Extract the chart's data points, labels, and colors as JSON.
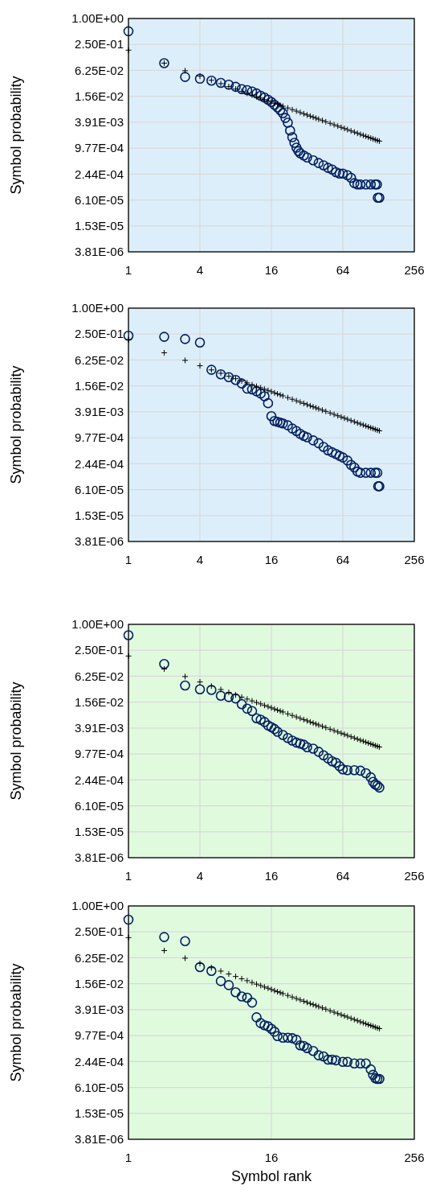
{
  "chart_data": [
    {
      "type": "scatter",
      "ylabel": "Symbol probability",
      "log": "xy",
      "grid": true,
      "xlim": [
        1,
        256
      ],
      "xticks": [
        1,
        4,
        16,
        64,
        256
      ],
      "ylim": [
        3.814697265625e-06,
        1
      ],
      "yticks": [
        {
          "value": 1,
          "label": "1.00E+00"
        },
        {
          "value": 0.25,
          "label": "2.50E-01"
        },
        {
          "value": 0.0625,
          "label": "6.25E-02"
        },
        {
          "value": 0.015625,
          "label": "1.56E-02"
        },
        {
          "value": 0.00390625,
          "label": "3.91E-03"
        },
        {
          "value": 0.0009765625,
          "label": "9.77E-04"
        },
        {
          "value": 0.000244140625,
          "label": "2.44E-04"
        },
        {
          "value": 6.103515625e-05,
          "label": "6.10E-05"
        },
        {
          "value": 1.52587890625e-05,
          "label": "1.53E-05"
        },
        {
          "value": 3.814697265625e-06,
          "label": "3.81E-06"
        }
      ],
      "series": [
        {
          "color": "#002060",
          "marker": "circle",
          "x": [
            1,
            2,
            3,
            4,
            5,
            6,
            7,
            8,
            9,
            10,
            11,
            12,
            13,
            14,
            15,
            16,
            17,
            18,
            19,
            20,
            21,
            22,
            23,
            24,
            25,
            26,
            27,
            28,
            30,
            32,
            36,
            40,
            44,
            48,
            52,
            56,
            60,
            64,
            70,
            75,
            80,
            85,
            90,
            100,
            110,
            120,
            124,
            126,
            130
          ],
          "values": [
            0.506,
            0.092,
            0.044,
            0.04,
            0.036,
            0.032,
            0.029,
            0.026,
            0.023,
            0.0218,
            0.0202,
            0.0182,
            0.0161,
            0.0146,
            0.013,
            0.0115,
            0.0099,
            0.0086,
            0.0074,
            0.0063,
            0.0049,
            0.0038,
            0.0025,
            0.00175,
            0.0013,
            0.001,
            0.00083,
            0.00074,
            0.00066,
            0.00059,
            0.00051,
            0.00044,
            0.00039,
            0.00034,
            0.00031,
            0.00027,
            0.00025,
            0.00025,
            0.00023,
            0.0002,
            0.00015,
            0.00014,
            0.00014,
            0.00014,
            0.00014,
            0.00014,
            0.00014,
            6.9e-05,
            6.9e-05
          ]
        },
        {
          "color": "#000000",
          "marker": "cross",
          "x": [
            1,
            2,
            3,
            4,
            5,
            6,
            7,
            8,
            9,
            10,
            11,
            12,
            13,
            14,
            15,
            16,
            17,
            18,
            19,
            20,
            22,
            24,
            26,
            28,
            30,
            32,
            34,
            36,
            38,
            40,
            43,
            46,
            50,
            54,
            58,
            62,
            66,
            70,
            75,
            80,
            85,
            90,
            95,
            100,
            105,
            110,
            115,
            120,
            125,
            130
          ],
          "values": [
            0.184,
            0.092,
            0.0613,
            0.046,
            0.0368,
            0.0307,
            0.0263,
            0.023,
            0.0204,
            0.0184,
            0.0167,
            0.0153,
            0.0142,
            0.0131,
            0.0123,
            0.0115,
            0.0108,
            0.0102,
            0.00968,
            0.0092,
            0.00836,
            0.00767,
            0.00708,
            0.00657,
            0.00613,
            0.00575,
            0.00541,
            0.00511,
            0.00484,
            0.0046,
            0.00428,
            0.004,
            0.00368,
            0.00341,
            0.00317,
            0.00297,
            0.00279,
            0.00263,
            0.00245,
            0.0023,
            0.00216,
            0.00204,
            0.00194,
            0.00184,
            0.00175,
            0.00167,
            0.0016,
            0.00153,
            0.00147,
            0.00142
          ]
        }
      ]
    },
    {
      "type": "scatter",
      "ylabel": "Symbol probability",
      "log": "xy",
      "grid": true,
      "xlim": [
        1,
        256
      ],
      "xticks": [
        1,
        4,
        16,
        64,
        256
      ],
      "ylim": [
        3.814697265625e-06,
        1
      ],
      "yticks": [
        {
          "value": 1,
          "label": "1.00E+00"
        },
        {
          "value": 0.25,
          "label": "2.50E-01"
        },
        {
          "value": 0.0625,
          "label": "6.25E-02"
        },
        {
          "value": 0.015625,
          "label": "1.56E-02"
        },
        {
          "value": 0.00390625,
          "label": "3.91E-03"
        },
        {
          "value": 0.0009765625,
          "label": "9.77E-04"
        },
        {
          "value": 0.000244140625,
          "label": "2.44E-04"
        },
        {
          "value": 6.103515625e-05,
          "label": "6.10E-05"
        },
        {
          "value": 1.52587890625e-05,
          "label": "1.53E-05"
        },
        {
          "value": 3.814697265625e-06,
          "label": "3.81E-06"
        }
      ],
      "series": [
        {
          "color": "#002060",
          "marker": "circle",
          "x": [
            1,
            2,
            3,
            4,
            5,
            6,
            7,
            8,
            9,
            10,
            11,
            12,
            13,
            14,
            15,
            16,
            17,
            18,
            19,
            20,
            22,
            24,
            26,
            28,
            30,
            32,
            36,
            40,
            44,
            48,
            52,
            56,
            60,
            64,
            70,
            75,
            80,
            85,
            90,
            100,
            110,
            120,
            125,
            127,
            130
          ],
          "values": [
            0.229,
            0.216,
            0.192,
            0.159,
            0.037,
            0.029,
            0.025,
            0.0215,
            0.0178,
            0.0135,
            0.013,
            0.0117,
            0.0104,
            0.009,
            0.0062,
            0.0031,
            0.0024,
            0.0023,
            0.0022,
            0.0021,
            0.0019,
            0.0016,
            0.0014,
            0.0012,
            0.00108,
            0.001,
            0.00085,
            0.00073,
            0.0006,
            0.0005,
            0.00045,
            0.00041,
            0.00037,
            0.00034,
            0.00029,
            0.00023,
            0.0002,
            0.00016,
            0.00015,
            0.00015,
            0.00015,
            0.00015,
            0.00015,
            7.3e-05,
            7.3e-05
          ]
        },
        {
          "color": "#000000",
          "marker": "cross",
          "x": [
            1,
            2,
            3,
            4,
            5,
            6,
            7,
            8,
            9,
            10,
            11,
            12,
            13,
            14,
            15,
            16,
            17,
            18,
            19,
            20,
            22,
            24,
            26,
            28,
            30,
            32,
            34,
            36,
            38,
            40,
            43,
            46,
            50,
            54,
            58,
            62,
            66,
            70,
            75,
            80,
            85,
            90,
            95,
            100,
            105,
            110,
            115,
            120,
            125,
            130
          ],
          "values": [
            0.184,
            0.092,
            0.0613,
            0.046,
            0.0368,
            0.0307,
            0.0263,
            0.023,
            0.0204,
            0.0184,
            0.0167,
            0.0153,
            0.0142,
            0.0131,
            0.0123,
            0.0115,
            0.0108,
            0.0102,
            0.00968,
            0.0092,
            0.00836,
            0.00767,
            0.00708,
            0.00657,
            0.00613,
            0.00575,
            0.00541,
            0.00511,
            0.00484,
            0.0046,
            0.00428,
            0.004,
            0.00368,
            0.00341,
            0.00317,
            0.00297,
            0.00279,
            0.00263,
            0.00245,
            0.0023,
            0.00216,
            0.00204,
            0.00194,
            0.00184,
            0.00175,
            0.00167,
            0.0016,
            0.00153,
            0.00147,
            0.00142
          ]
        }
      ]
    },
    {
      "type": "scatter",
      "ylabel": "Symbol probability",
      "log": "xy",
      "grid": true,
      "xlim": [
        1,
        256
      ],
      "xticks": [
        1,
        4,
        16,
        64,
        256
      ],
      "ylim": [
        3.814697265625e-06,
        1
      ],
      "yticks": [
        {
          "value": 1,
          "label": "1.00E+00"
        },
        {
          "value": 0.25,
          "label": "2.50E-01"
        },
        {
          "value": 0.0625,
          "label": "6.25E-02"
        },
        {
          "value": 0.015625,
          "label": "1.56E-02"
        },
        {
          "value": 0.00390625,
          "label": "3.91E-03"
        },
        {
          "value": 0.0009765625,
          "label": "9.77E-04"
        },
        {
          "value": 0.000244140625,
          "label": "2.44E-04"
        },
        {
          "value": 6.103515625e-05,
          "label": "6.10E-05"
        },
        {
          "value": 1.52587890625e-05,
          "label": "1.53E-05"
        },
        {
          "value": 3.814697265625e-06,
          "label": "3.81E-06"
        }
      ],
      "series": [
        {
          "color": "#002060",
          "marker": "circle",
          "x": [
            1,
            2,
            3,
            4,
            5,
            6,
            7,
            8,
            9,
            10,
            11,
            12,
            13,
            14,
            15,
            16,
            17,
            18,
            20,
            22,
            24,
            26,
            28,
            30,
            32,
            36,
            40,
            44,
            48,
            52,
            56,
            60,
            64,
            70,
            80,
            90,
            100,
            110,
            115,
            120,
            125,
            130
          ],
          "values": [
            0.56,
            0.12,
            0.038,
            0.031,
            0.03,
            0.022,
            0.0205,
            0.019,
            0.014,
            0.011,
            0.0097,
            0.0066,
            0.0061,
            0.0054,
            0.0045,
            0.0041,
            0.0037,
            0.0032,
            0.0027,
            0.0023,
            0.002,
            0.0018,
            0.0017,
            0.0016,
            0.0014,
            0.0013,
            0.0011,
            0.00091,
            0.00077,
            0.00066,
            0.00061,
            0.00051,
            0.00043,
            0.00041,
            0.00041,
            0.0004,
            0.00035,
            0.00028,
            0.00022,
            0.00019,
            0.00018,
            0.000162
          ]
        },
        {
          "color": "#000000",
          "marker": "cross",
          "x": [
            1,
            2,
            3,
            4,
            5,
            6,
            7,
            8,
            9,
            10,
            11,
            12,
            13,
            14,
            15,
            16,
            17,
            18,
            19,
            20,
            22,
            24,
            26,
            28,
            30,
            32,
            34,
            36,
            38,
            40,
            43,
            46,
            50,
            54,
            58,
            62,
            66,
            70,
            75,
            80,
            85,
            90,
            95,
            100,
            105,
            110,
            115,
            120,
            125,
            130
          ],
          "values": [
            0.184,
            0.092,
            0.0613,
            0.046,
            0.0368,
            0.0307,
            0.0263,
            0.023,
            0.0204,
            0.0184,
            0.0167,
            0.0153,
            0.0142,
            0.0131,
            0.0123,
            0.0115,
            0.0108,
            0.0102,
            0.00968,
            0.0092,
            0.00836,
            0.00767,
            0.00708,
            0.00657,
            0.00613,
            0.00575,
            0.00541,
            0.00511,
            0.00484,
            0.0046,
            0.00428,
            0.004,
            0.00368,
            0.00341,
            0.00317,
            0.00297,
            0.00279,
            0.00263,
            0.00245,
            0.0023,
            0.00216,
            0.00204,
            0.00194,
            0.00184,
            0.00175,
            0.00167,
            0.0016,
            0.00153,
            0.00147,
            0.00142
          ]
        }
      ]
    },
    {
      "type": "scatter",
      "xlabel": "Symbol rank",
      "ylabel": "Symbol probability",
      "log": "xy",
      "grid": true,
      "xlim": [
        1,
        256
      ],
      "xticks": [
        1,
        16,
        256
      ],
      "ylim": [
        3.814697265625e-06,
        1
      ],
      "yticks": [
        {
          "value": 1,
          "label": "1.00E+00"
        },
        {
          "value": 0.25,
          "label": "2.50E-01"
        },
        {
          "value": 0.0625,
          "label": "6.25E-02"
        },
        {
          "value": 0.015625,
          "label": "1.56E-02"
        },
        {
          "value": 0.00390625,
          "label": "3.91E-03"
        },
        {
          "value": 0.0009765625,
          "label": "9.77E-04"
        },
        {
          "value": 0.000244140625,
          "label": "2.44E-04"
        },
        {
          "value": 6.103515625e-05,
          "label": "6.10E-05"
        },
        {
          "value": 1.52587890625e-05,
          "label": "1.53E-05"
        },
        {
          "value": 3.814697265625e-06,
          "label": "3.81E-06"
        }
      ],
      "series": [
        {
          "color": "#002060",
          "marker": "circle",
          "x": [
            1,
            2,
            3,
            4,
            5,
            6,
            7,
            8,
            9,
            10,
            11,
            12,
            13,
            14,
            15,
            16,
            17,
            18,
            20,
            22,
            24,
            26,
            28,
            30,
            32,
            36,
            40,
            44,
            48,
            52,
            56,
            64,
            70,
            80,
            90,
            100,
            110,
            115,
            120,
            125,
            130
          ],
          "values": [
            0.48,
            0.19,
            0.152,
            0.038,
            0.031,
            0.018,
            0.0145,
            0.0099,
            0.0079,
            0.0074,
            0.0057,
            0.0026,
            0.0019,
            0.0017,
            0.0016,
            0.0014,
            0.0012,
            0.00095,
            0.00087,
            0.00087,
            0.00085,
            0.00078,
            0.00058,
            0.00056,
            0.0005,
            0.00043,
            0.00034,
            0.00032,
            0.00027,
            0.00027,
            0.00026,
            0.00024,
            0.00024,
            0.00022,
            0.00022,
            0.00022,
            0.00016,
            0.00012,
            0.0001,
            9.6e-05,
            9.6e-05
          ]
        },
        {
          "color": "#000000",
          "marker": "cross",
          "x": [
            1,
            2,
            3,
            4,
            5,
            6,
            7,
            8,
            9,
            10,
            11,
            12,
            13,
            14,
            15,
            16,
            17,
            18,
            19,
            20,
            22,
            24,
            26,
            28,
            30,
            32,
            34,
            36,
            38,
            40,
            43,
            46,
            50,
            54,
            58,
            62,
            66,
            70,
            75,
            80,
            85,
            90,
            95,
            100,
            105,
            110,
            115,
            120,
            125,
            130
          ],
          "values": [
            0.184,
            0.092,
            0.0613,
            0.046,
            0.0368,
            0.0307,
            0.0263,
            0.023,
            0.0204,
            0.0184,
            0.0167,
            0.0153,
            0.0142,
            0.0131,
            0.0123,
            0.0115,
            0.0108,
            0.0102,
            0.00968,
            0.0092,
            0.00836,
            0.00767,
            0.00708,
            0.00657,
            0.00613,
            0.00575,
            0.00541,
            0.00511,
            0.00484,
            0.0046,
            0.00428,
            0.004,
            0.00368,
            0.00341,
            0.00317,
            0.00297,
            0.00279,
            0.00263,
            0.00245,
            0.0023,
            0.00216,
            0.00204,
            0.00194,
            0.00184,
            0.00175,
            0.00167,
            0.0016,
            0.00153,
            0.00147,
            0.00142
          ]
        }
      ]
    }
  ]
}
